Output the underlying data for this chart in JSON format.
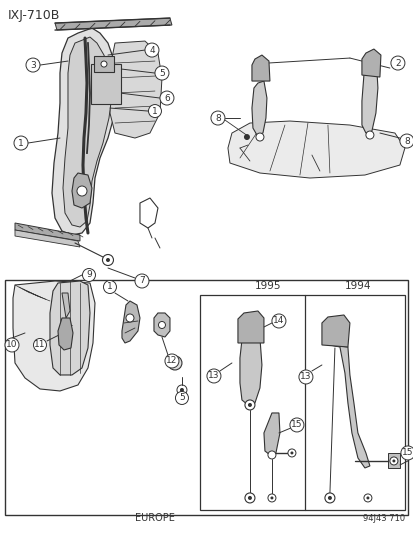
{
  "title_code": "IXJ-710B",
  "footer_left": "EUROPE",
  "footer_right": "94J43 710",
  "bg_color": "#ffffff",
  "line_color": "#333333",
  "label_fontsize": 6.5,
  "title_fontsize": 9,
  "year_left": "1995",
  "year_right": "1994",
  "fig_w": 4.14,
  "fig_h": 5.33,
  "dpi": 100
}
